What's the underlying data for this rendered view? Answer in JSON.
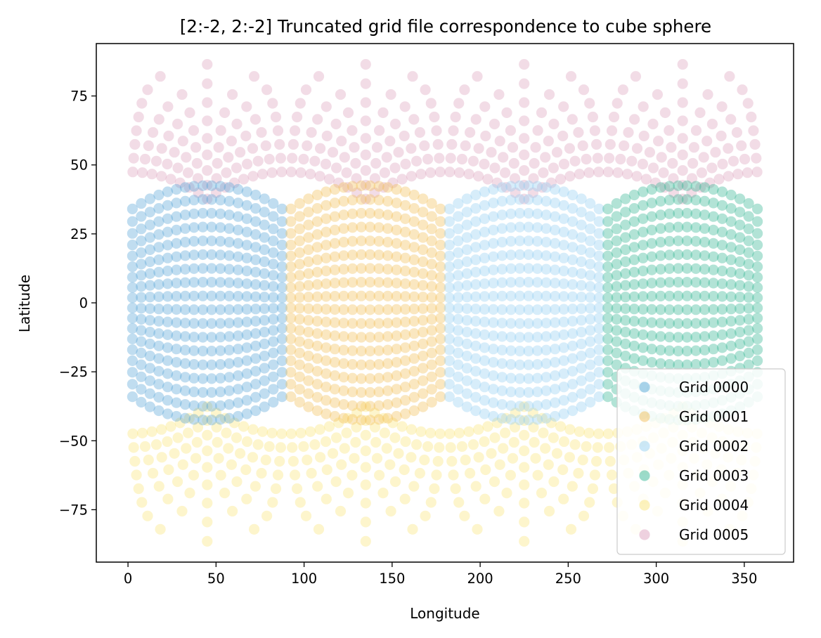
{
  "chart_data": {
    "type": "scatter",
    "title": "[2:-2, 2:-2] Truncated grid file correspondence to cube sphere",
    "xlabel": "Longitude",
    "ylabel": "Latitude",
    "xlim": [
      -18,
      378
    ],
    "ylim": [
      -94,
      94
    ],
    "xticks": [
      0,
      50,
      100,
      150,
      200,
      250,
      300,
      350
    ],
    "yticks": [
      -75,
      -50,
      -25,
      0,
      25,
      50,
      75
    ],
    "xtick_labels": [
      "0",
      "50",
      "100",
      "150",
      "200",
      "250",
      "300",
      "350"
    ],
    "ytick_labels": [
      "−75",
      "−50",
      "−25",
      "0",
      "25",
      "50",
      "75"
    ],
    "grid": false,
    "legend_position": "lower-right",
    "marker_alpha": 0.35,
    "series": [
      {
        "name": "Grid 0000",
        "color": "#4a9fd5",
        "region": "equatorial",
        "lon_range": [
          0,
          90
        ],
        "lat_extent": [
          -44,
          44
        ]
      },
      {
        "name": "Grid 0001",
        "color": "#f0b94a",
        "region": "equatorial",
        "lon_range": [
          90,
          180
        ],
        "lat_extent": [
          -44,
          44
        ]
      },
      {
        "name": "Grid 0002",
        "color": "#8ccbf0",
        "region": "equatorial",
        "lon_range": [
          180,
          270
        ],
        "lat_extent": [
          -44,
          44
        ]
      },
      {
        "name": "Grid 0003",
        "color": "#22b08a",
        "region": "equatorial",
        "lon_range": [
          270,
          360
        ],
        "lat_extent": [
          -44,
          44
        ]
      },
      {
        "name": "Grid 0004",
        "color": "#f8e26e",
        "region": "south-polar",
        "lon_range": [
          0,
          360
        ],
        "lat_extent": [
          -86,
          -35
        ]
      },
      {
        "name": "Grid 0005",
        "color": "#d99ab8",
        "region": "north-polar",
        "lon_range": [
          0,
          360
        ],
        "lat_extent": [
          35,
          86
        ]
      }
    ]
  }
}
